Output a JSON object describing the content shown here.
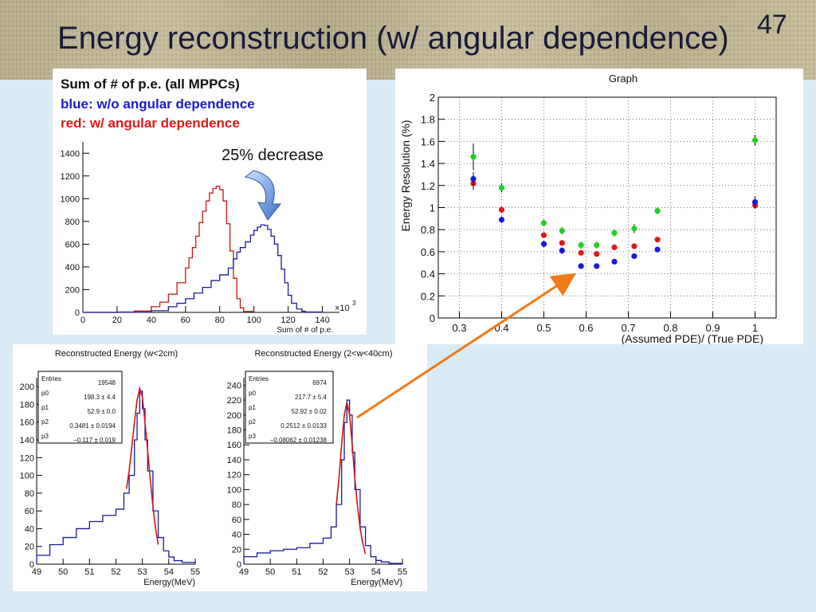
{
  "slide": {
    "title": "Energy reconstruction (w/ angular dependence)",
    "number": "47"
  },
  "chart_data": [
    {
      "id": "pe",
      "type": "histogram",
      "legend_lines": [
        {
          "text": "Sum of # of p.e. (all MPPCs)",
          "color": "#111111"
        },
        {
          "text": "blue: w/o angular dependence",
          "color": "#1a1ad0"
        },
        {
          "text": "red: w/ angular dependence",
          "color": "#e01818"
        }
      ],
      "annotation": "25% decrease",
      "xlabel": "Sum of # of p.e.",
      "x_multiplier": "×10",
      "x_multiplier_exp": "3",
      "xlim": [
        0,
        150
      ],
      "ylim": [
        0,
        1500
      ],
      "xticks": [
        0,
        20,
        40,
        60,
        80,
        100,
        120,
        140
      ],
      "yticks": [
        0,
        200,
        400,
        600,
        800,
        1000,
        1200,
        1400
      ],
      "series": [
        {
          "color": "#d01515",
          "x": [
            0,
            10,
            20,
            30,
            40,
            45,
            50,
            55,
            60,
            62,
            64,
            66,
            68,
            70,
            72,
            74,
            76,
            78,
            80,
            82,
            84,
            86,
            88,
            90,
            92,
            94,
            100
          ],
          "y": [
            0,
            0,
            3,
            12,
            50,
            90,
            160,
            260,
            390,
            480,
            570,
            670,
            790,
            890,
            980,
            1050,
            1090,
            1110,
            1080,
            980,
            780,
            540,
            300,
            120,
            40,
            8,
            0
          ]
        },
        {
          "color": "#1a1a9a",
          "x": [
            0,
            20,
            40,
            50,
            55,
            60,
            65,
            70,
            75,
            80,
            85,
            88,
            90,
            92,
            95,
            98,
            100,
            102,
            104,
            106,
            108,
            110,
            112,
            114,
            116,
            118,
            120,
            122,
            125,
            128,
            130,
            140
          ],
          "y": [
            0,
            2,
            15,
            50,
            80,
            120,
            170,
            220,
            280,
            330,
            390,
            470,
            530,
            570,
            620,
            680,
            720,
            750,
            770,
            765,
            730,
            670,
            600,
            500,
            380,
            260,
            150,
            80,
            30,
            10,
            3,
            0
          ]
        }
      ]
    },
    {
      "id": "res",
      "type": "scatter",
      "title": "Graph",
      "xlabel": "(Assumed PDE)/ (True PDE)",
      "ylabel": "Energy Resolution (%)",
      "xlim": [
        0.25,
        1.05
      ],
      "ylim": [
        0,
        2
      ],
      "xticks": [
        0.3,
        0.4,
        0.5,
        0.6,
        0.7,
        0.8,
        0.9,
        1
      ],
      "xtick_labels": [
        "0.3",
        "0.4",
        "0.5",
        "0.6",
        "0.7",
        "0.8",
        "0.9",
        "1"
      ],
      "yticks": [
        0,
        0.2,
        0.4,
        0.6,
        0.8,
        1,
        1.2,
        1.4,
        1.6,
        1.8,
        2
      ],
      "ytick_labels": [
        "0",
        "0.2",
        "0.4",
        "0.6",
        "0.8",
        "1",
        "1.2",
        "1.4",
        "1.6",
        "1.8",
        "2"
      ],
      "grid": true,
      "series": [
        {
          "color": "#20d020",
          "x": [
            0.333,
            0.4,
            0.5,
            0.543,
            0.588,
            0.625,
            0.667,
            0.714,
            0.769,
            1.0
          ],
          "y": [
            1.46,
            1.18,
            0.86,
            0.79,
            0.66,
            0.66,
            0.77,
            0.81,
            0.97,
            1.61
          ],
          "err": [
            0.12,
            0.04,
            0.03,
            0.03,
            0.03,
            0.03,
            0.03,
            0.04,
            0.03,
            0.05
          ]
        },
        {
          "color": "#e01818",
          "x": [
            0.333,
            0.4,
            0.5,
            0.543,
            0.588,
            0.625,
            0.667,
            0.714,
            0.769,
            1.0
          ],
          "y": [
            1.22,
            0.98,
            0.75,
            0.68,
            0.59,
            0.58,
            0.64,
            0.65,
            0.71,
            1.02
          ],
          "err": [
            0.06,
            0.03,
            0.02,
            0.02,
            0.02,
            0.02,
            0.02,
            0.02,
            0.02,
            0.03
          ]
        },
        {
          "color": "#1818e0",
          "x": [
            0.333,
            0.4,
            0.5,
            0.543,
            0.588,
            0.625,
            0.667,
            0.714,
            0.769,
            1.0
          ],
          "y": [
            1.26,
            0.89,
            0.67,
            0.61,
            0.47,
            0.47,
            0.51,
            0.56,
            0.62,
            1.05
          ],
          "err": [
            0.06,
            0.03,
            0.03,
            0.03,
            0.02,
            0.02,
            0.02,
            0.02,
            0.02,
            0.05
          ]
        }
      ]
    },
    {
      "id": "e1",
      "type": "histogram",
      "title": "Reconstructed Energy (w<2cm)",
      "xlabel": "Energy(MeV)",
      "xlim": [
        49,
        55
      ],
      "ylim": [
        0,
        210
      ],
      "xticks": [
        49,
        50,
        51,
        52,
        53,
        54,
        55
      ],
      "yticks": [
        0,
        20,
        40,
        60,
        80,
        100,
        120,
        140,
        160,
        180,
        200
      ],
      "stats": [
        {
          "key": "Entries",
          "val": "19548"
        },
        {
          "key": "p0",
          "val": "198.3 ± 4.4"
        },
        {
          "key": "p1",
          "val": "52.9 ± 0.0"
        },
        {
          "key": "p2",
          "val": "0.3481 ± 0.0194"
        },
        {
          "key": "p3",
          "val": "−0.117 ± 0.019"
        }
      ],
      "hist": {
        "color": "#1a1a9a",
        "x": [
          49,
          49.5,
          50,
          50.5,
          51,
          51.5,
          52,
          52.3,
          52.5,
          52.7,
          52.8,
          52.9,
          53.0,
          53.1,
          53.2,
          53.4,
          53.6,
          53.8,
          54,
          54.2,
          54.5,
          55
        ],
        "y": [
          10,
          22,
          30,
          40,
          48,
          55,
          62,
          80,
          100,
          140,
          170,
          195,
          175,
          140,
          105,
          60,
          30,
          15,
          8,
          4,
          2,
          0
        ]
      },
      "fit": {
        "color": "#d01515",
        "x": [
          52.4,
          52.5,
          52.6,
          52.7,
          52.8,
          52.9,
          53.0,
          53.1,
          53.2,
          53.3,
          53.4,
          53.5,
          53.6
        ],
        "y": [
          85,
          105,
          132,
          160,
          185,
          198,
          188,
          160,
          128,
          95,
          65,
          40,
          22
        ]
      }
    },
    {
      "id": "e2",
      "type": "histogram",
      "title": "Reconstructed Energy (2<w<40cm)",
      "xlabel": "Energy(MeV)",
      "xlim": [
        49,
        55
      ],
      "ylim": [
        0,
        250
      ],
      "xticks": [
        49,
        50,
        51,
        52,
        53,
        54,
        55
      ],
      "yticks": [
        0,
        20,
        40,
        60,
        80,
        100,
        120,
        140,
        160,
        180,
        200,
        220,
        240
      ],
      "stats": [
        {
          "key": "Entries",
          "val": "6974"
        },
        {
          "key": "p0",
          "val": "217.7 ± 5.4"
        },
        {
          "key": "p1",
          "val": "52.92 ± 0.02"
        },
        {
          "key": "p2",
          "val": "0.2512 ± 0.0133"
        },
        {
          "key": "p3",
          "val": "−0.08062 ± 0.01238"
        }
      ],
      "hist": {
        "color": "#1a1a9a",
        "x": [
          49,
          49.5,
          50,
          50.5,
          51,
          51.5,
          52,
          52.3,
          52.5,
          52.7,
          52.8,
          52.9,
          53.0,
          53.1,
          53.2,
          53.4,
          53.6,
          53.8,
          54,
          54.2,
          54.5,
          55
        ],
        "y": [
          10,
          15,
          18,
          20,
          22,
          28,
          35,
          50,
          80,
          140,
          190,
          220,
          200,
          150,
          100,
          50,
          25,
          10,
          5,
          3,
          1,
          0
        ]
      },
      "fit": {
        "color": "#d01515",
        "x": [
          52.5,
          52.6,
          52.7,
          52.8,
          52.9,
          53.0,
          53.1,
          53.2,
          53.3,
          53.4,
          53.5,
          53.6
        ],
        "y": [
          80,
          115,
          160,
          200,
          217,
          200,
          160,
          115,
          78,
          48,
          28,
          14
        ]
      }
    }
  ]
}
